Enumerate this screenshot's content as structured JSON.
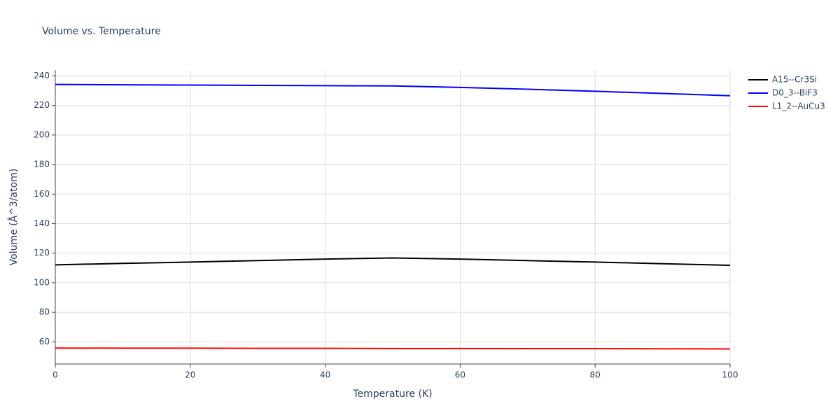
{
  "chart_data": {
    "type": "line",
    "title": "Volume vs. Temperature",
    "x_label": "Temperature (K)",
    "y_label": "Volume (Å^3/atom)",
    "x": [
      0,
      10,
      20,
      30,
      40,
      50,
      60,
      70,
      80,
      90,
      100
    ],
    "series": [
      {
        "name": "A15--Cr3Si",
        "color": "#000000",
        "values": [
          112.1,
          113.1,
          114.0,
          115.0,
          116.0,
          116.8,
          116.0,
          115.0,
          114.0,
          112.9,
          111.8
        ]
      },
      {
        "name": "D0_3--BiF3",
        "color": "#0000ff",
        "values": [
          234.2,
          234.0,
          233.8,
          233.6,
          233.4,
          233.2,
          232.2,
          231.0,
          229.6,
          228.1,
          226.6
        ]
      },
      {
        "name": "L1_2--AuCu3",
        "color": "#ff0000",
        "values": [
          55.8,
          55.7,
          55.7,
          55.6,
          55.6,
          55.5,
          55.5,
          55.4,
          55.4,
          55.3,
          55.2
        ]
      }
    ],
    "xlim": [
      0,
      100
    ],
    "xticks": [
      0,
      20,
      40,
      60,
      80,
      100
    ],
    "ylim": [
      45,
      244
    ],
    "yticks": [
      60,
      80,
      100,
      120,
      140,
      160,
      180,
      200,
      220,
      240
    ],
    "grid": true,
    "legend": "right"
  }
}
